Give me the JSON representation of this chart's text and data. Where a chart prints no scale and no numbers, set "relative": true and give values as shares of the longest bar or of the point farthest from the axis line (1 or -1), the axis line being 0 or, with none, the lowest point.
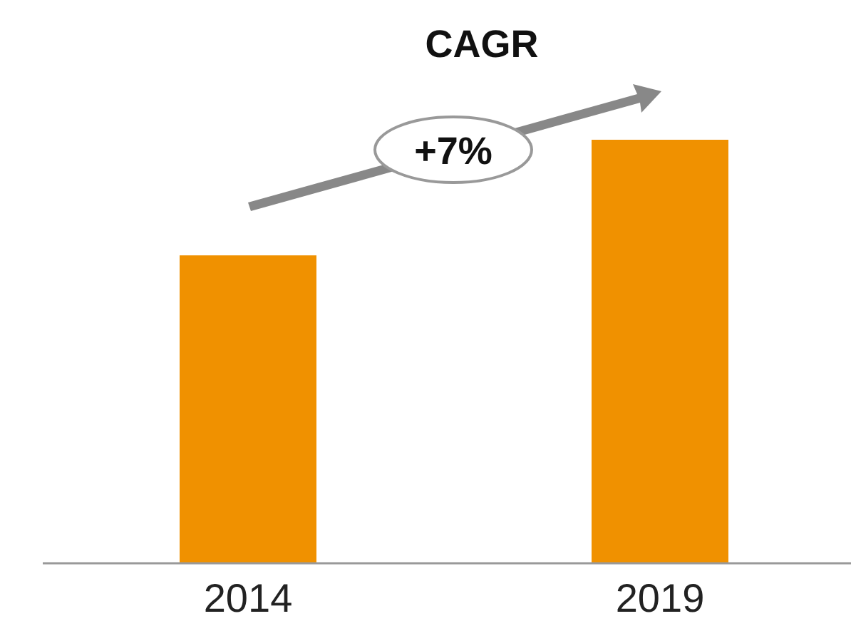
{
  "chart_data": {
    "type": "bar",
    "relative": true,
    "title": "CAGR",
    "categories": [
      "2014",
      "2019"
    ],
    "values": [
      0.727,
      1
    ],
    "color": "#f09100",
    "annotations": [
      "+7%"
    ]
  }
}
